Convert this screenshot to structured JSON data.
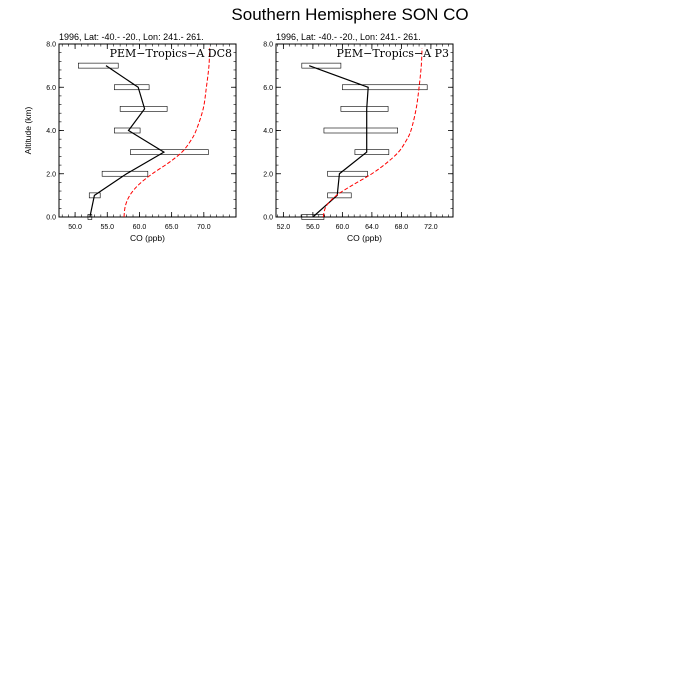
{
  "title": "Southern Hemisphere SON CO",
  "chart_data": [
    {
      "type": "line",
      "panel_title": "1996, Lat: -40.- -20., Lon: 241.- 261.",
      "annotation": "PEM−Tropics−A DC8",
      "xlabel": "CO (ppb)",
      "ylabel": "Altitude (km)",
      "xlim": [
        47.5,
        75
      ],
      "ylim": [
        0,
        8
      ],
      "xticks": [
        "50.0",
        "55.0",
        "60.0",
        "65.0",
        "70.0"
      ],
      "xtick_values": [
        50,
        55,
        60,
        65,
        70
      ],
      "yticks": [
        "0.0",
        "2.0",
        "4.0",
        "6.0",
        "8.0"
      ],
      "ytick_values": [
        0,
        2,
        4,
        6,
        8
      ],
      "observed": {
        "color": "#000000",
        "points": [
          {
            "alt": 0.0,
            "co": 52.3
          },
          {
            "alt": 1.0,
            "co": 53.0
          },
          {
            "alt": 2.0,
            "co": 58.0
          },
          {
            "alt": 3.0,
            "co": 63.8
          },
          {
            "alt": 4.0,
            "co": 58.3
          },
          {
            "alt": 5.0,
            "co": 60.8
          },
          {
            "alt": 6.0,
            "co": 59.8
          },
          {
            "alt": 7.0,
            "co": 54.8
          }
        ]
      },
      "ranges": [
        {
          "alt": 0.0,
          "lo": 52.0,
          "hi": 52.6
        },
        {
          "alt": 1.0,
          "lo": 52.2,
          "hi": 53.9
        },
        {
          "alt": 2.0,
          "lo": 54.2,
          "hi": 61.3
        },
        {
          "alt": 3.0,
          "lo": 58.6,
          "hi": 70.7
        },
        {
          "alt": 4.0,
          "lo": 56.1,
          "hi": 60.1
        },
        {
          "alt": 5.0,
          "lo": 57.0,
          "hi": 64.3
        },
        {
          "alt": 6.0,
          "lo": 56.1,
          "hi": 61.5
        },
        {
          "alt": 7.0,
          "lo": 50.5,
          "hi": 56.7
        }
      ],
      "model": {
        "color": "#ff0000",
        "points": [
          {
            "alt": 0.0,
            "co": 57.6
          },
          {
            "alt": 0.5,
            "co": 57.8
          },
          {
            "alt": 1.0,
            "co": 58.5
          },
          {
            "alt": 1.5,
            "co": 59.9
          },
          {
            "alt": 2.0,
            "co": 62.0
          },
          {
            "alt": 2.5,
            "co": 64.5
          },
          {
            "alt": 3.0,
            "co": 66.6
          },
          {
            "alt": 3.5,
            "co": 67.9
          },
          {
            "alt": 4.0,
            "co": 68.8
          },
          {
            "alt": 5.0,
            "co": 69.9
          },
          {
            "alt": 6.0,
            "co": 70.4
          },
          {
            "alt": 7.0,
            "co": 70.8
          },
          {
            "alt": 7.8,
            "co": 70.9
          }
        ]
      }
    },
    {
      "type": "line",
      "panel_title": "1996, Lat: -40.- -20., Lon: 241.- 261.",
      "annotation": "PEM−Tropics−A P3",
      "xlabel": "CO (ppb)",
      "ylabel": "",
      "xlim": [
        51,
        75
      ],
      "ylim": [
        0,
        8
      ],
      "xticks": [
        "52.0",
        "56.0",
        "60.0",
        "64.0",
        "68.0",
        "72.0"
      ],
      "xtick_values": [
        52,
        56,
        60,
        64,
        68,
        72
      ],
      "yticks": [
        "0.0",
        "2.0",
        "4.0",
        "6.0",
        "8.0"
      ],
      "ytick_values": [
        0,
        2,
        4,
        6,
        8
      ],
      "observed": {
        "color": "#000000",
        "points": [
          {
            "alt": 0.0,
            "co": 56.0
          },
          {
            "alt": 1.0,
            "co": 59.3
          },
          {
            "alt": 2.0,
            "co": 59.6
          },
          {
            "alt": 3.0,
            "co": 63.3
          },
          {
            "alt": 4.0,
            "co": 63.3
          },
          {
            "alt": 5.0,
            "co": 63.3
          },
          {
            "alt": 6.0,
            "co": 63.5
          },
          {
            "alt": 7.0,
            "co": 55.5
          }
        ]
      },
      "ranges": [
        {
          "alt": 0.0,
          "lo": 54.5,
          "hi": 57.5
        },
        {
          "alt": 1.0,
          "lo": 58.0,
          "hi": 61.2
        },
        {
          "alt": 2.0,
          "lo": 58.0,
          "hi": 63.4
        },
        {
          "alt": 3.0,
          "lo": 61.7,
          "hi": 66.3
        },
        {
          "alt": 4.0,
          "lo": 57.5,
          "hi": 67.5
        },
        {
          "alt": 5.0,
          "lo": 59.8,
          "hi": 66.2
        },
        {
          "alt": 6.0,
          "lo": 60.0,
          "hi": 71.5
        },
        {
          "alt": 7.0,
          "lo": 54.5,
          "hi": 59.8
        }
      ],
      "model": {
        "color": "#ff0000",
        "points": [
          {
            "alt": 0.0,
            "co": 57.4
          },
          {
            "alt": 0.5,
            "co": 57.8
          },
          {
            "alt": 1.0,
            "co": 59.2
          },
          {
            "alt": 1.5,
            "co": 61.5
          },
          {
            "alt": 2.0,
            "co": 64.0
          },
          {
            "alt": 2.5,
            "co": 66.0
          },
          {
            "alt": 3.0,
            "co": 67.6
          },
          {
            "alt": 3.5,
            "co": 68.6
          },
          {
            "alt": 4.0,
            "co": 69.3
          },
          {
            "alt": 5.0,
            "co": 70.0
          },
          {
            "alt": 6.0,
            "co": 70.4
          },
          {
            "alt": 7.0,
            "co": 70.7
          },
          {
            "alt": 7.8,
            "co": 70.8
          }
        ]
      }
    }
  ]
}
